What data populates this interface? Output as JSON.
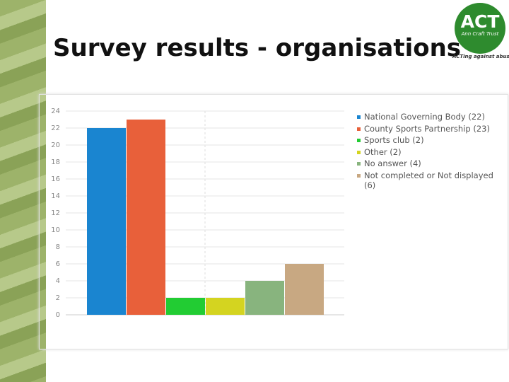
{
  "chart_data": {
    "type": "bar",
    "title": "Survey results - organisations",
    "categories": [
      "National Governing Body (22)",
      "County Sports Partnership (23)",
      "Sports club (2)",
      "Other (2)",
      "No answer (4)",
      "Not completed or Not displayed (6)"
    ],
    "values": [
      22,
      23,
      2,
      2,
      4,
      6
    ],
    "colors": [
      "#1a85d0",
      "#e8603a",
      "#22cc33",
      "#d4d420",
      "#88b47e",
      "#c8a882"
    ],
    "ylim": [
      0,
      24
    ],
    "yticks": [
      0,
      2,
      4,
      6,
      8,
      10,
      12,
      14,
      16,
      18,
      20,
      22,
      24
    ],
    "grid": true
  },
  "logo": {
    "text": "ACT",
    "subtitle": "Ann Craft Trust",
    "tagline": "ACTing against abuse"
  }
}
